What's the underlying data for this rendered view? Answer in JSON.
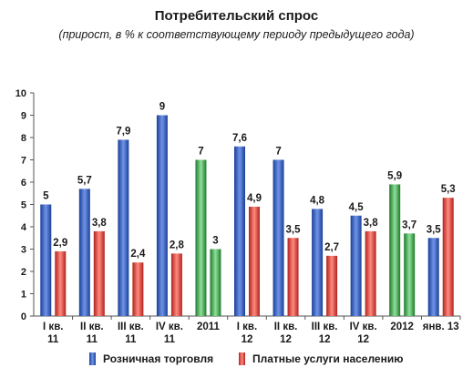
{
  "chart_data": {
    "type": "bar",
    "title": "Потребительский спрос",
    "subtitle": "(прирост, в % к соответствующему периоду предыдущего года)",
    "xlabel": "",
    "ylabel": "",
    "ylim": [
      0,
      10
    ],
    "yticks": [
      "0",
      "1",
      "2",
      "3",
      "4",
      "5",
      "6",
      "7",
      "8",
      "9",
      "10"
    ],
    "grid": false,
    "legend_position": "bottom",
    "categories": [
      [
        "I кв.",
        "11"
      ],
      [
        "II кв.",
        "11"
      ],
      [
        "III кв.",
        "11"
      ],
      [
        "IV кв.",
        "11"
      ],
      [
        "2011"
      ],
      [
        "I кв.",
        "12"
      ],
      [
        "II кв.",
        "12"
      ],
      [
        "III кв.",
        "12"
      ],
      [
        "IV кв.",
        "12"
      ],
      [
        "2012"
      ],
      [
        "янв. 13"
      ]
    ],
    "annual_categories": [
      4,
      9
    ],
    "series": [
      {
        "name": "Розничная торговля",
        "color": "#2f5fc4",
        "annual_color": "#3daa4a",
        "values": [
          5,
          5.7,
          7.9,
          9,
          7,
          7.6,
          7,
          4.8,
          4.5,
          5.9,
          3.5
        ],
        "labels": [
          "5",
          "5,7",
          "7,9",
          "9",
          "7",
          "7,6",
          "7",
          "4,8",
          "4,5",
          "5,9",
          "3,5"
        ]
      },
      {
        "name": "Платные услуги населению",
        "color": "#e8453c",
        "annual_color": "#3daa4a",
        "values": [
          2.9,
          3.8,
          2.4,
          2.8,
          3,
          4.9,
          3.5,
          2.7,
          3.8,
          3.7,
          5.3
        ],
        "labels": [
          "2,9",
          "3,8",
          "2,4",
          "2,8",
          "3",
          "4,9",
          "3,5",
          "2,7",
          "3,8",
          "3,7",
          "5,3"
        ]
      }
    ]
  }
}
